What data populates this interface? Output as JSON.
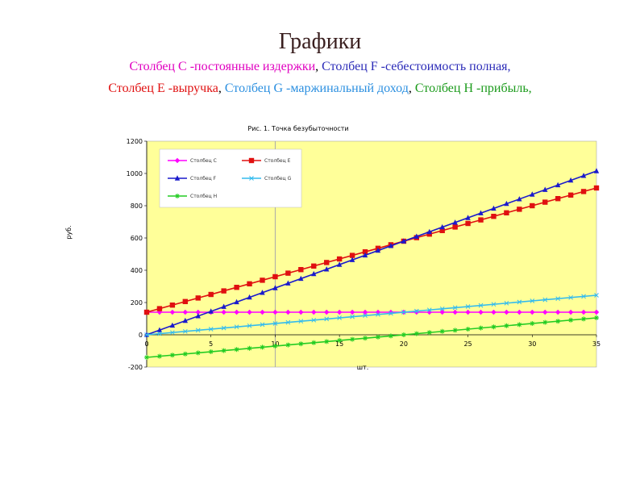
{
  "slide": {
    "title": "Графики",
    "line1": [
      {
        "text": "Столбец C -постоянные издержки",
        "color": "#e000c0"
      },
      {
        "text": ", ",
        "color": "#000000"
      },
      {
        "text": "Столбец F -себестоимость полная,",
        "color": "#2b2bb8"
      }
    ],
    "line2": [
      {
        "text": "Столбец E -выручка",
        "color": "#e01010"
      },
      {
        "text": ", ",
        "color": "#000000"
      },
      {
        "text": "Столбец G -маржинальный доход",
        "color": "#2b8fe0"
      },
      {
        "text": ", ",
        "color": "#000000"
      },
      {
        "text": "Столбец H -прибыль,",
        "color": "#1a9a1a"
      }
    ]
  },
  "chart_data": {
    "type": "line",
    "title": "Рис. 1. Точка безубыточности",
    "xlabel": "шт.",
    "ylabel": "руб.",
    "xlim": [
      0,
      35
    ],
    "ylim": [
      -200,
      1200
    ],
    "xticks": [
      0,
      5,
      10,
      15,
      20,
      25,
      30,
      35
    ],
    "yticks": [
      -200,
      0,
      200,
      400,
      600,
      800,
      1000,
      1200
    ],
    "vertical_line_x": 10,
    "plot_background": "#ffff99",
    "legend_position": "top-left",
    "series": [
      {
        "name": "Столбец C",
        "color": "#ff00ff",
        "marker": "diamond",
        "x": [
          0,
          35
        ],
        "y": [
          140,
          140
        ]
      },
      {
        "name": "Столбец E",
        "color": "#e01010",
        "marker": "square",
        "x": [
          0,
          35
        ],
        "y": [
          140,
          910
        ]
      },
      {
        "name": "Столбец F",
        "color": "#1a1acc",
        "marker": "triangle",
        "x": [
          0,
          35
        ],
        "y": [
          0,
          1015
        ]
      },
      {
        "name": "Столбец G",
        "color": "#33bbee",
        "marker": "x",
        "x": [
          0,
          35
        ],
        "y": [
          0,
          245
        ]
      },
      {
        "name": "Столбец H",
        "color": "#22cc22",
        "marker": "star",
        "x": [
          0,
          35
        ],
        "y": [
          -140,
          105
        ]
      }
    ]
  }
}
